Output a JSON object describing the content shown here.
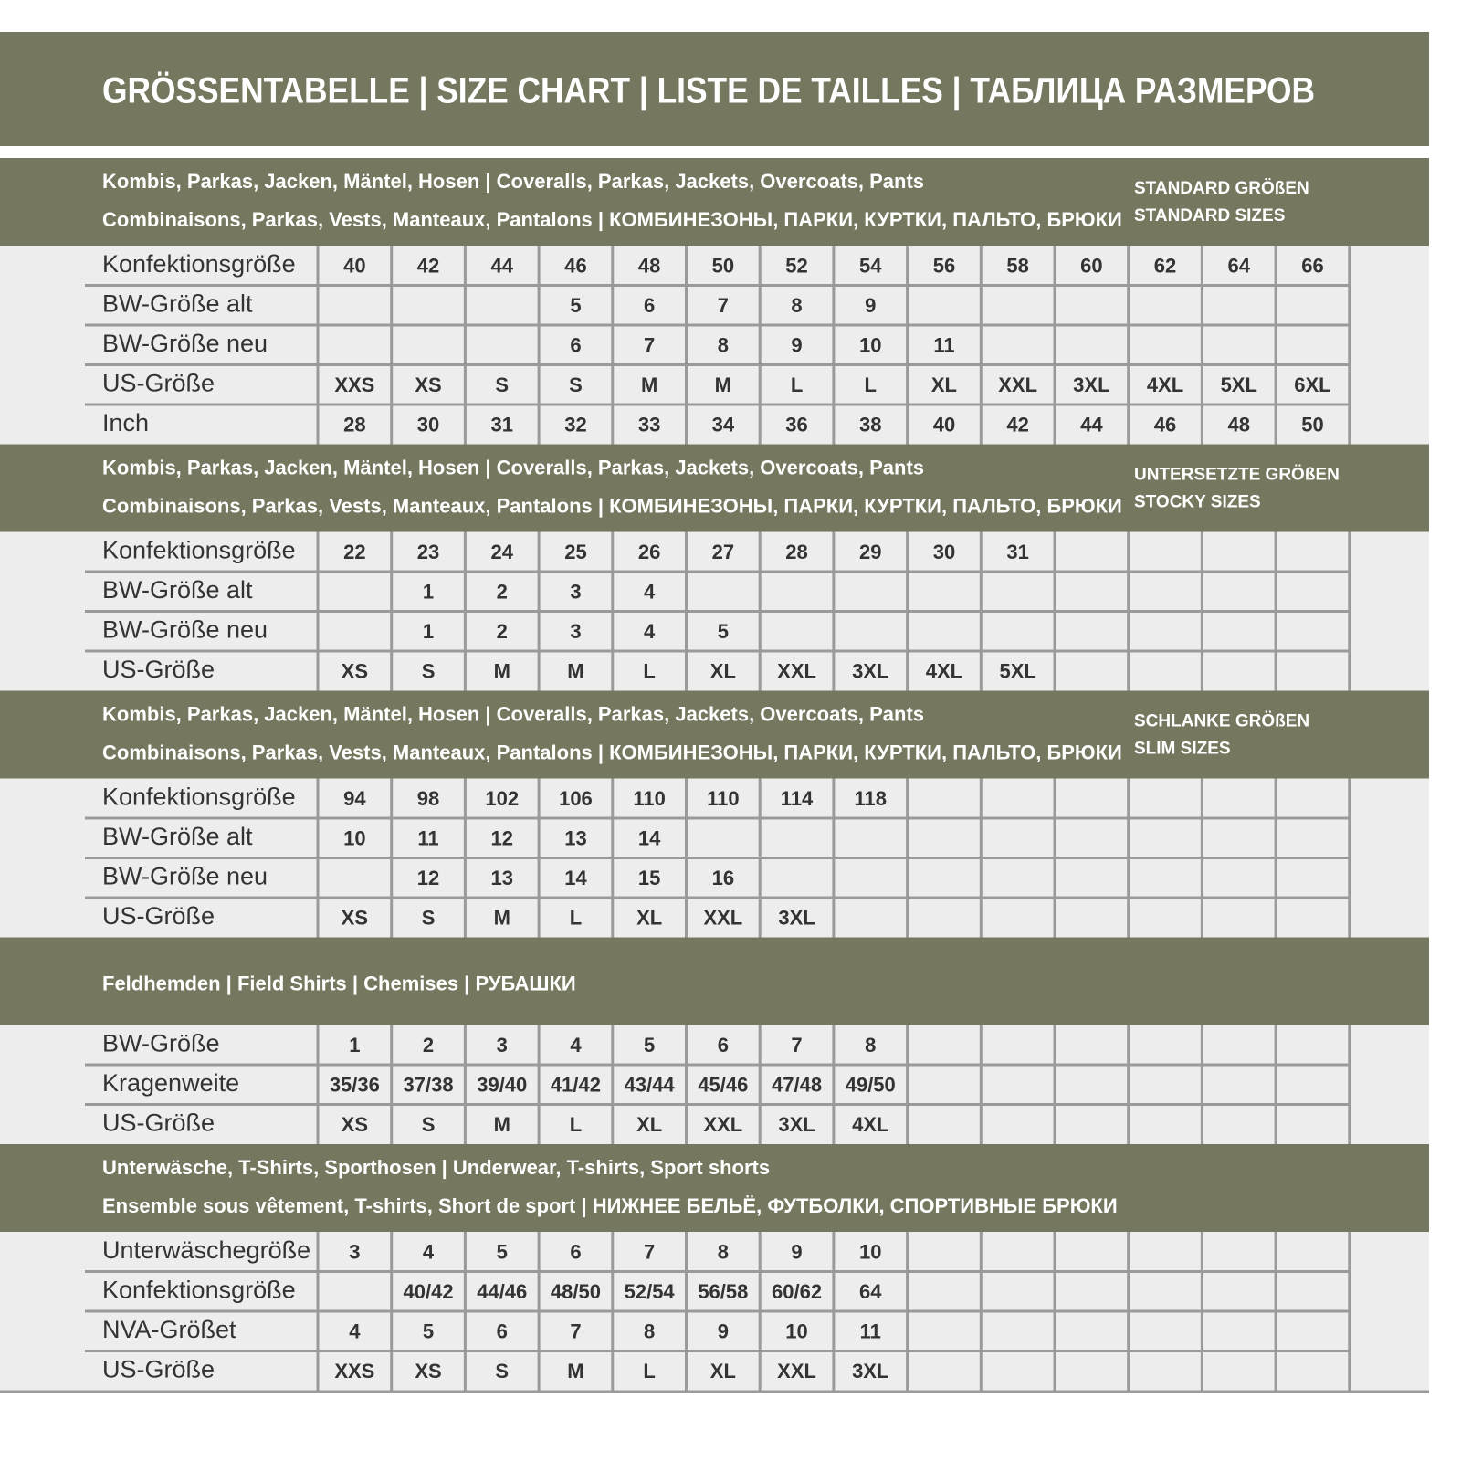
{
  "title": "GRÖSSENTABELLE | SIZE CHART | LISTE DE TAILLES | ТАБЛИЦА РАЗМЕРОВ",
  "sections": [
    {
      "header": [
        "Kombis, Parkas, Jacken, Mäntel, Hosen | Coveralls, Parkas, Jackets, Overcoats, Pants",
        "Combinaisons, Parkas, Vests, Manteaux, Pantalons | КОМБИНЕЗОНЫ, ПАРКИ, КУРТКИ, ПАЛЬТО, БРЮКИ"
      ],
      "badge": [
        "STANDARD GRÖßEN",
        "STANDARD SIZES"
      ],
      "rows": [
        {
          "label": "Konfektionsgröße",
          "cells": [
            "40",
            "42",
            "44",
            "46",
            "48",
            "50",
            "52",
            "54",
            "56",
            "58",
            "60",
            "62",
            "64",
            "66"
          ]
        },
        {
          "label": "BW-Größe alt",
          "cells": [
            null,
            null,
            null,
            "5",
            "6",
            "7",
            "8",
            "9",
            null,
            null,
            null,
            null,
            null,
            null
          ]
        },
        {
          "label": "BW-Größe neu",
          "cells": [
            null,
            null,
            null,
            "6",
            "7",
            "8",
            "9",
            "10",
            "11",
            null,
            null,
            null,
            null,
            null
          ]
        },
        {
          "label": "US-Größe",
          "cells": [
            "XXS",
            "XS",
            "S",
            "S",
            "M",
            "M",
            "L",
            "L",
            "XL",
            "XXL",
            "3XL",
            "4XL",
            "5XL",
            "6XL"
          ]
        },
        {
          "label": "Inch",
          "cells": [
            "28",
            "30",
            "31",
            "32",
            "33",
            "34",
            "36",
            "38",
            "40",
            "42",
            "44",
            "46",
            "48",
            "50"
          ]
        }
      ]
    },
    {
      "header": [
        "Kombis, Parkas, Jacken, Mäntel, Hosen | Coveralls, Parkas, Jackets, Overcoats, Pants",
        "Combinaisons, Parkas, Vests, Manteaux, Pantalons | КОМБИНЕЗОНЫ, ПАРКИ, КУРТКИ, ПАЛЬТО, БРЮКИ"
      ],
      "badge": [
        "UNTERSETZTE GRÖßEN",
        "STOCKY SIZES"
      ],
      "rows": [
        {
          "label": "Konfektionsgröße",
          "cells": [
            "22",
            "23",
            "24",
            "25",
            "26",
            "27",
            "28",
            "29",
            "30",
            "31",
            null,
            null,
            null,
            null
          ]
        },
        {
          "label": "BW-Größe alt",
          "cells": [
            null,
            "1",
            "2",
            "3",
            "4",
            null,
            null,
            null,
            null,
            null,
            null,
            null,
            null,
            null
          ]
        },
        {
          "label": "BW-Größe neu",
          "cells": [
            null,
            "1",
            "2",
            "3",
            "4",
            "5",
            null,
            null,
            null,
            null,
            null,
            null,
            null,
            null
          ]
        },
        {
          "label": "US-Größe",
          "cells": [
            "XS",
            "S",
            "M",
            "M",
            "L",
            "XL",
            "XXL",
            "3XL",
            "4XL",
            "5XL",
            null,
            null,
            null,
            null
          ]
        }
      ]
    },
    {
      "header": [
        "Kombis, Parkas, Jacken, Mäntel, Hosen | Coveralls, Parkas, Jackets, Overcoats, Pants",
        "Combinaisons, Parkas, Vests, Manteaux, Pantalons | КОМБИНЕЗОНЫ, ПАРКИ, КУРТКИ, ПАЛЬТО, БРЮКИ"
      ],
      "badge": [
        "SCHLANKE GRÖßEN",
        "SLIM SIZES"
      ],
      "rows": [
        {
          "label": "Konfektionsgröße",
          "cells": [
            "94",
            "98",
            "102",
            "106",
            "110",
            "110",
            "114",
            "118",
            null,
            null,
            null,
            null,
            null,
            null
          ]
        },
        {
          "label": "BW-Größe alt",
          "cells": [
            "10",
            "11",
            "12",
            "13",
            "14",
            null,
            null,
            null,
            null,
            null,
            null,
            null,
            null,
            null
          ]
        },
        {
          "label": "BW-Größe neu",
          "cells": [
            null,
            "12",
            "13",
            "14",
            "15",
            "16",
            null,
            null,
            null,
            null,
            null,
            null,
            null,
            null
          ]
        },
        {
          "label": "US-Größe",
          "cells": [
            "XS",
            "S",
            "M",
            "L",
            "XL",
            "XXL",
            "3XL",
            null,
            null,
            null,
            null,
            null,
            null,
            null
          ]
        }
      ]
    },
    {
      "header": [
        "Feldhemden | Field Shirts | Chemises | РУБАШКИ"
      ],
      "rows": [
        {
          "label": "BW-Größe",
          "cells": [
            "1",
            "2",
            "3",
            "4",
            "5",
            "6",
            "7",
            "8",
            null,
            null,
            null,
            null,
            null,
            null
          ]
        },
        {
          "label": "Kragenweite",
          "cells": [
            "35/36",
            "37/38",
            "39/40",
            "41/42",
            "43/44",
            "45/46",
            "47/48",
            "49/50",
            null,
            null,
            null,
            null,
            null,
            null
          ]
        },
        {
          "label": "US-Größe",
          "cells": [
            "XS",
            "S",
            "M",
            "L",
            "XL",
            "XXL",
            "3XL",
            "4XL",
            null,
            null,
            null,
            null,
            null,
            null
          ]
        }
      ]
    },
    {
      "header": [
        "Unterwäsche, T-Shirts, Sporthosen | Underwear, T-shirts, Sport shorts",
        "Ensemble sous vêtement, T-shirts, Short de sport | НИЖНЕЕ БЕЛЬЁ, ФУТБОЛКИ, СПОРТИВНЫЕ БРЮКИ"
      ],
      "rows": [
        {
          "label": "Unterwäschegröße",
          "cells": [
            "3",
            "4",
            "5",
            "6",
            "7",
            "8",
            "9",
            "10",
            null,
            null,
            null,
            null,
            null,
            null
          ]
        },
        {
          "label": "Konfektionsgröße",
          "cells": [
            null,
            "40/42",
            "44/46",
            "48/50",
            "52/54",
            "56/58",
            "60/62",
            "64",
            null,
            null,
            null,
            null,
            null,
            null
          ]
        },
        {
          "label": "NVA-Größet",
          "cells": [
            "4",
            "5",
            "6",
            "7",
            "8",
            "9",
            "10",
            "11",
            null,
            null,
            null,
            null,
            null,
            null
          ]
        },
        {
          "label": "US-Größe",
          "cells": [
            "XXS",
            "XS",
            "S",
            "M",
            "L",
            "XL",
            "XXL",
            "3XL",
            null,
            null,
            null,
            null,
            null,
            null
          ]
        }
      ]
    }
  ]
}
